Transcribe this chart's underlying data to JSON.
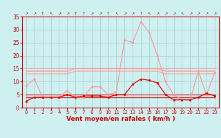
{
  "x": [
    0,
    1,
    2,
    3,
    4,
    5,
    6,
    7,
    8,
    9,
    10,
    11,
    12,
    13,
    14,
    15,
    16,
    17,
    18,
    19,
    20,
    21,
    22,
    23
  ],
  "rafales": [
    8.5,
    11,
    4,
    4,
    4,
    6.5,
    4,
    4,
    8,
    8,
    5,
    6,
    26,
    25,
    33,
    29,
    20,
    10,
    5,
    3,
    3,
    14,
    5,
    13.5
  ],
  "vent_moyen": [
    2.5,
    4,
    4,
    4,
    4,
    5,
    4,
    4.5,
    4.5,
    4.5,
    4,
    5,
    5,
    9,
    11,
    10.5,
    9.5,
    5,
    3,
    3,
    3,
    4,
    5.5,
    4.5
  ],
  "ref_light1": [
    14,
    14,
    14,
    14,
    14,
    14,
    15,
    15,
    15,
    15,
    15,
    15,
    15,
    15,
    15,
    15,
    15,
    14,
    14,
    14,
    14,
    14,
    14,
    14
  ],
  "ref_light2": [
    13,
    13,
    13,
    13,
    13,
    13,
    14,
    14,
    14,
    14,
    14,
    14,
    14,
    14,
    14,
    14,
    14,
    13,
    13,
    13,
    13,
    13,
    13,
    13
  ],
  "ref_light3": [
    15,
    15,
    15,
    15,
    15,
    15,
    15,
    15,
    15,
    15,
    15,
    15,
    15,
    15,
    15,
    15,
    15,
    15,
    15,
    15,
    15,
    15,
    15,
    15
  ],
  "ref_dark1": [
    4,
    4,
    4,
    4,
    4,
    4,
    4,
    4,
    4,
    4,
    4,
    4,
    4,
    4,
    4,
    4,
    4,
    4,
    4,
    4,
    4,
    4,
    4,
    4
  ],
  "ref_dark2": [
    5,
    5,
    5,
    5,
    5,
    5,
    5,
    5,
    5,
    5,
    5,
    5,
    5,
    5,
    5,
    5,
    5,
    5,
    5,
    5,
    5,
    5,
    5,
    5
  ],
  "wind_dirs": [
    "↗",
    "↗",
    "↑",
    "↖",
    "↗",
    "↗",
    "↑",
    "↑",
    "↗",
    "↗",
    "↑",
    "↖",
    "↗",
    "↗",
    "↑",
    "↖",
    "↗",
    "↗",
    "↗",
    "↖",
    "↗",
    "↗",
    "↗",
    "↗"
  ],
  "bg_color": "#cff0f0",
  "grid_color": "#aed4d4",
  "light_red": "#ff9999",
  "dark_red": "#dd0000",
  "xlabel": "Vent moyen/en rafales ( km/h )",
  "ylim": [
    0,
    35
  ],
  "yticks": [
    0,
    5,
    10,
    15,
    20,
    25,
    30,
    35
  ],
  "xlim": [
    -0.5,
    23.5
  ]
}
